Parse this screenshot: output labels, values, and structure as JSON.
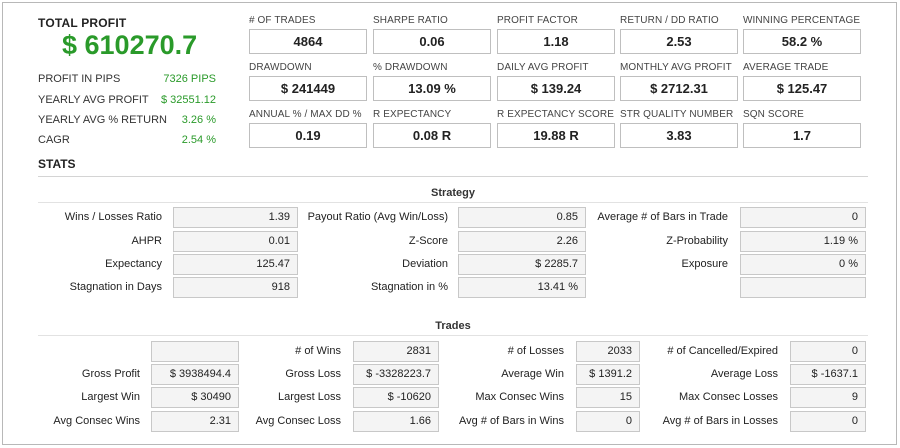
{
  "summary": {
    "total_profit_label": "TOTAL PROFIT",
    "total_profit_value": "$ 610270.7",
    "rows": [
      {
        "label": "PROFIT IN PIPS",
        "value": "7326 PIPS"
      },
      {
        "label": "YEARLY AVG PROFIT",
        "value": "$ 32551.12"
      },
      {
        "label": "YEARLY AVG % RETURN",
        "value": "3.26 %"
      },
      {
        "label": "CAGR",
        "value": "2.54 %"
      }
    ]
  },
  "metrics": [
    {
      "label": "# OF TRADES",
      "value": "4864"
    },
    {
      "label": "SHARPE RATIO",
      "value": "0.06"
    },
    {
      "label": "PROFIT FACTOR",
      "value": "1.18"
    },
    {
      "label": "RETURN / DD RATIO",
      "value": "2.53"
    },
    {
      "label": "WINNING PERCENTAGE",
      "value": "58.2 %"
    },
    {
      "label": "DRAWDOWN",
      "value": "$ 241449"
    },
    {
      "label": "% DRAWDOWN",
      "value": "13.09 %"
    },
    {
      "label": "DAILY AVG PROFIT",
      "value": "$ 139.24"
    },
    {
      "label": "MONTHLY AVG PROFIT",
      "value": "$ 2712.31"
    },
    {
      "label": "AVERAGE TRADE",
      "value": "$ 125.47"
    },
    {
      "label": "ANNUAL % / MAX DD %",
      "value": "0.19"
    },
    {
      "label": "R EXPECTANCY",
      "value": "0.08 R"
    },
    {
      "label": "R EXPECTANCY SCORE",
      "value": "19.88 R"
    },
    {
      "label": "STR QUALITY NUMBER",
      "value": "3.83"
    },
    {
      "label": "SQN SCORE",
      "value": "1.7"
    }
  ],
  "stats": {
    "title": "STATS",
    "strategy": {
      "title": "Strategy",
      "rows": [
        [
          {
            "label": "Wins / Losses Ratio",
            "value": "1.39"
          },
          {
            "label": "Payout Ratio (Avg Win/Loss)",
            "value": "0.85"
          },
          {
            "label": "Average # of Bars in Trade",
            "value": "0"
          }
        ],
        [
          {
            "label": "AHPR",
            "value": "0.01"
          },
          {
            "label": "Z-Score",
            "value": "2.26"
          },
          {
            "label": "Z-Probability",
            "value": "1.19 %"
          }
        ],
        [
          {
            "label": "Expectancy",
            "value": "125.47"
          },
          {
            "label": "Deviation",
            "value": "$ 2285.7"
          },
          {
            "label": "Exposure",
            "value": "0 %"
          }
        ],
        [
          {
            "label": "Stagnation in Days",
            "value": "918"
          },
          {
            "label": "Stagnation in %",
            "value": "13.41 %"
          },
          {
            "label": "",
            "value": ""
          }
        ]
      ]
    },
    "trades": {
      "title": "Trades",
      "rows": [
        [
          {
            "label": "",
            "value": ""
          },
          {
            "label": "# of Wins",
            "value": "2831"
          },
          {
            "label": "# of Losses",
            "value": "2033"
          },
          {
            "label": "# of Cancelled/Expired",
            "value": "0"
          }
        ],
        [
          {
            "label": "Gross Profit",
            "value": "$ 3938494.4"
          },
          {
            "label": "Gross Loss",
            "value": "$ -3328223.7"
          },
          {
            "label": "Average Win",
            "value": "$ 1391.2"
          },
          {
            "label": "Average Loss",
            "value": "$ -1637.1"
          }
        ],
        [
          {
            "label": "Largest Win",
            "value": "$ 30490"
          },
          {
            "label": "Largest Loss",
            "value": "$ -10620"
          },
          {
            "label": "Max Consec Wins",
            "value": "15"
          },
          {
            "label": "Max Consec Losses",
            "value": "9"
          }
        ],
        [
          {
            "label": "Avg Consec Wins",
            "value": "2.31"
          },
          {
            "label": "Avg Consec Loss",
            "value": "1.66"
          },
          {
            "label": "Avg # of Bars in Wins",
            "value": "0"
          },
          {
            "label": "Avg # of Bars in Losses",
            "value": "0"
          }
        ]
      ]
    }
  }
}
